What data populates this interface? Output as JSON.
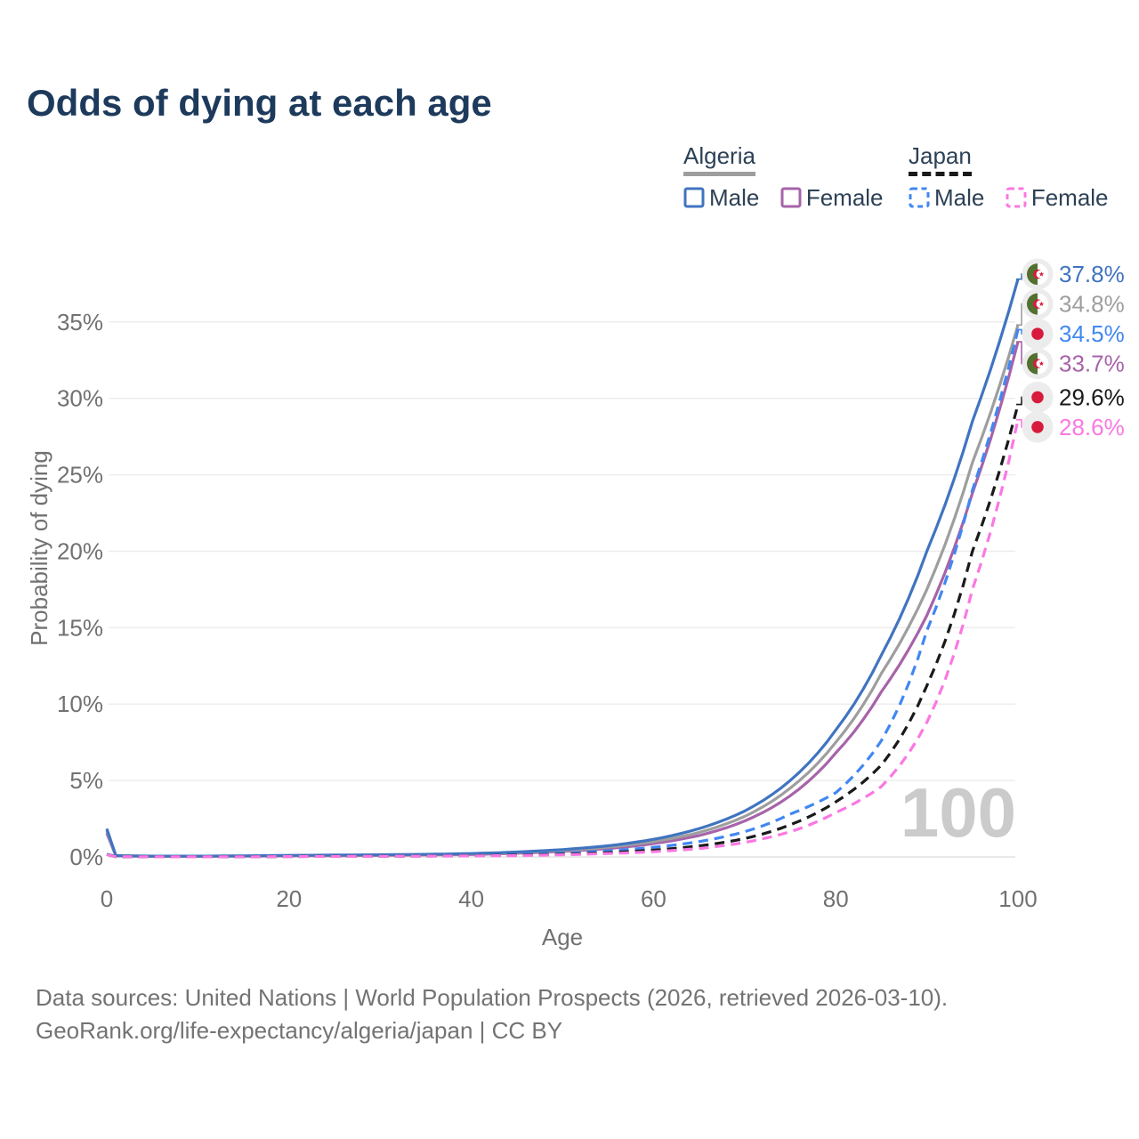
{
  "title": {
    "text": "Odds of dying at each age",
    "color": "#1d3a5c"
  },
  "legend": {
    "groups": [
      {
        "country": "Algeria",
        "underline_style": "solid",
        "underline_color": "#9e9e9e",
        "items": [
          {
            "label": "Male",
            "series": "algeria_male"
          },
          {
            "label": "Female",
            "series": "algeria_female"
          }
        ]
      },
      {
        "country": "Japan",
        "underline_style": "dashed",
        "underline_color": "#1a1a1a",
        "items": [
          {
            "label": "Male",
            "series": "japan_male"
          },
          {
            "label": "Female",
            "series": "japan_female"
          }
        ]
      }
    ]
  },
  "chart_data": {
    "type": "line",
    "xlabel": "Age",
    "ylabel": "Probability of dying",
    "xlim": [
      0,
      100
    ],
    "ylim_pct": [
      0,
      38.2
    ],
    "grid": "horizontal",
    "x_ticks": [
      {
        "value": 0,
        "label": "0"
      },
      {
        "value": 20,
        "label": "20"
      },
      {
        "value": 40,
        "label": "40"
      },
      {
        "value": 60,
        "label": "60"
      },
      {
        "value": 80,
        "label": "80"
      },
      {
        "value": 100,
        "label": "100"
      }
    ],
    "y_ticks": [
      {
        "value": 0,
        "label": "0%"
      },
      {
        "value": 5,
        "label": "5%"
      },
      {
        "value": 10,
        "label": "10%"
      },
      {
        "value": 15,
        "label": "15%"
      },
      {
        "value": 20,
        "label": "20%"
      },
      {
        "value": 25,
        "label": "25%"
      },
      {
        "value": 30,
        "label": "30%"
      },
      {
        "value": 35,
        "label": "35%"
      }
    ],
    "age_counter_watermark": "100",
    "flag_colors": {
      "algeria_green": "#52702f",
      "red": "#d81a3c",
      "white": "#ffffff",
      "badge_bg": "#ececec"
    },
    "series": [
      {
        "id": "algeria_female",
        "country": "Algeria",
        "name": "Female",
        "flag": "algeria",
        "color": "#a763a9",
        "line_style": "solid",
        "end_label": "33.7%",
        "points": [
          [
            0,
            1.55
          ],
          [
            1,
            0.07
          ],
          [
            5,
            0.04
          ],
          [
            10,
            0.04
          ],
          [
            15,
            0.05
          ],
          [
            20,
            0.07
          ],
          [
            25,
            0.08
          ],
          [
            30,
            0.1
          ],
          [
            35,
            0.13
          ],
          [
            40,
            0.16
          ],
          [
            45,
            0.24
          ],
          [
            50,
            0.36
          ],
          [
            55,
            0.55
          ],
          [
            60,
            0.87
          ],
          [
            65,
            1.4
          ],
          [
            70,
            2.35
          ],
          [
            75,
            4.0
          ],
          [
            80,
            6.8
          ],
          [
            85,
            10.8
          ],
          [
            90,
            15.8
          ],
          [
            95,
            23.8
          ],
          [
            100,
            33.7
          ]
        ]
      },
      {
        "id": "algeria_both",
        "country": "Algeria",
        "name": "Algeria",
        "flag": "algeria",
        "color": "#9e9e9e",
        "line_style": "solid",
        "end_label": "34.8%",
        "points": [
          [
            0,
            1.7
          ],
          [
            1,
            0.08
          ],
          [
            5,
            0.045
          ],
          [
            10,
            0.045
          ],
          [
            15,
            0.06
          ],
          [
            20,
            0.085
          ],
          [
            25,
            0.1
          ],
          [
            30,
            0.12
          ],
          [
            35,
            0.15
          ],
          [
            40,
            0.19
          ],
          [
            45,
            0.28
          ],
          [
            50,
            0.42
          ],
          [
            55,
            0.64
          ],
          [
            60,
            1.0
          ],
          [
            65,
            1.6
          ],
          [
            70,
            2.65
          ],
          [
            75,
            4.5
          ],
          [
            80,
            7.5
          ],
          [
            85,
            12.0
          ],
          [
            90,
            17.5
          ],
          [
            95,
            25.8
          ],
          [
            100,
            34.8
          ]
        ]
      },
      {
        "id": "algeria_male",
        "country": "Algeria",
        "name": "Male",
        "flag": "algeria",
        "color": "#4074c0",
        "line_style": "solid",
        "end_label": "37.8%",
        "points": [
          [
            0,
            1.85
          ],
          [
            1,
            0.09
          ],
          [
            5,
            0.05
          ],
          [
            10,
            0.05
          ],
          [
            15,
            0.07
          ],
          [
            20,
            0.1
          ],
          [
            25,
            0.12
          ],
          [
            30,
            0.14
          ],
          [
            35,
            0.17
          ],
          [
            40,
            0.22
          ],
          [
            45,
            0.32
          ],
          [
            50,
            0.48
          ],
          [
            55,
            0.73
          ],
          [
            60,
            1.15
          ],
          [
            65,
            1.85
          ],
          [
            70,
            3.0
          ],
          [
            75,
            5.0
          ],
          [
            80,
            8.3
          ],
          [
            85,
            13.2
          ],
          [
            90,
            20.0
          ],
          [
            95,
            28.5
          ],
          [
            100,
            37.8
          ]
        ]
      },
      {
        "id": "japan_male",
        "country": "Japan",
        "name": "Male",
        "flag": "japan",
        "color": "#4187f2",
        "line_style": "dashed",
        "end_label": "34.5%",
        "points": [
          [
            0,
            0.18
          ],
          [
            1,
            0.025
          ],
          [
            5,
            0.01
          ],
          [
            10,
            0.008
          ],
          [
            15,
            0.02
          ],
          [
            20,
            0.04
          ],
          [
            25,
            0.05
          ],
          [
            30,
            0.06
          ],
          [
            35,
            0.08
          ],
          [
            40,
            0.1
          ],
          [
            45,
            0.16
          ],
          [
            50,
            0.25
          ],
          [
            55,
            0.4
          ],
          [
            60,
            0.63
          ],
          [
            65,
            1.0
          ],
          [
            70,
            1.65
          ],
          [
            75,
            2.8
          ],
          [
            80,
            4.2
          ],
          [
            85,
            7.6
          ],
          [
            90,
            14.8
          ],
          [
            95,
            24.0
          ],
          [
            100,
            34.5
          ]
        ]
      },
      {
        "id": "japan_both",
        "country": "Japan",
        "name": "Japan",
        "flag": "japan",
        "color": "#1a1a1a",
        "line_style": "dashed",
        "end_label": "29.6%",
        "points": [
          [
            0,
            0.16
          ],
          [
            1,
            0.02
          ],
          [
            5,
            0.009
          ],
          [
            10,
            0.007
          ],
          [
            15,
            0.015
          ],
          [
            20,
            0.03
          ],
          [
            25,
            0.04
          ],
          [
            30,
            0.045
          ],
          [
            35,
            0.06
          ],
          [
            40,
            0.08
          ],
          [
            45,
            0.12
          ],
          [
            50,
            0.18
          ],
          [
            55,
            0.28
          ],
          [
            60,
            0.45
          ],
          [
            65,
            0.72
          ],
          [
            70,
            1.2
          ],
          [
            75,
            2.1
          ],
          [
            80,
            3.6
          ],
          [
            85,
            6.0
          ],
          [
            90,
            11.2
          ],
          [
            95,
            20.0
          ],
          [
            100,
            29.6
          ]
        ]
      },
      {
        "id": "japan_female",
        "country": "Japan",
        "name": "Female",
        "flag": "japan",
        "color": "#fa78e2",
        "line_style": "dashed",
        "end_label": "28.6%",
        "points": [
          [
            0,
            0.15
          ],
          [
            1,
            0.018
          ],
          [
            5,
            0.008
          ],
          [
            10,
            0.006
          ],
          [
            15,
            0.012
          ],
          [
            20,
            0.025
          ],
          [
            25,
            0.03
          ],
          [
            30,
            0.04
          ],
          [
            35,
            0.05
          ],
          [
            40,
            0.065
          ],
          [
            45,
            0.09
          ],
          [
            50,
            0.14
          ],
          [
            55,
            0.22
          ],
          [
            60,
            0.34
          ],
          [
            65,
            0.55
          ],
          [
            70,
            0.95
          ],
          [
            75,
            1.65
          ],
          [
            80,
            2.9
          ],
          [
            85,
            4.6
          ],
          [
            90,
            8.8
          ],
          [
            95,
            17.5
          ],
          [
            100,
            28.6
          ]
        ]
      }
    ]
  },
  "footer": {
    "line1": "Data sources: United Nations | World Population Prospects (2026, retrieved 2026-03-10).",
    "line2": "GeoRank.org/life-expectancy/algeria/japan | CC BY"
  }
}
